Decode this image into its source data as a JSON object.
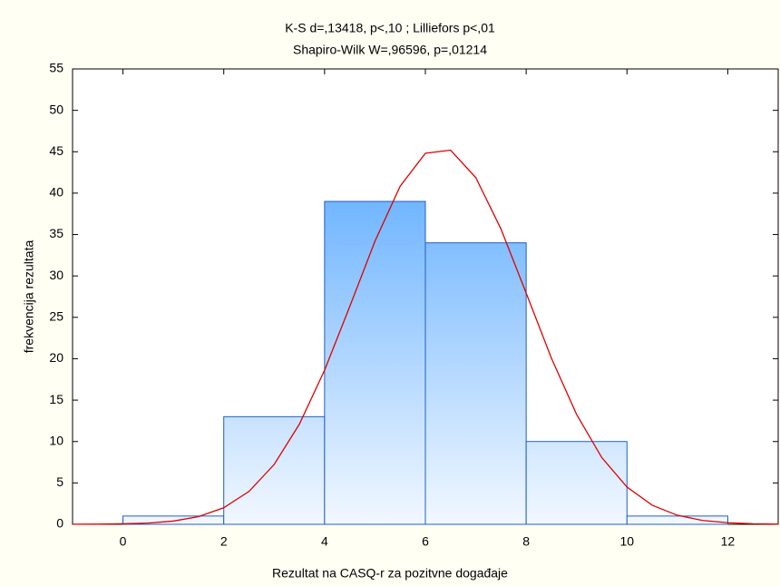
{
  "chart_data": {
    "type": "histogram",
    "title": "K-S d=,13418, p<,10 ; Lilliefors p<,01",
    "subtitle": "Shapiro-Wilk W=,96596, p=,01214",
    "x_label": "Rezultat na CASQ-r za pozitvne događaje",
    "y_label": "frekvencija rezultata",
    "bins": [
      0,
      2,
      4,
      6,
      8,
      10,
      12
    ],
    "values": [
      1,
      13,
      39,
      34,
      10,
      1
    ],
    "color": "#3d9bff",
    "edge_color": "#1f5fc8",
    "xlim": [
      -1,
      13
    ],
    "xticks": [
      0,
      2,
      4,
      6,
      8,
      10,
      12
    ],
    "ylim": [
      0,
      55
    ],
    "yticks": [
      0,
      5,
      10,
      15,
      20,
      25,
      30,
      35,
      40,
      45,
      50,
      55
    ],
    "grid": false,
    "curve": {
      "color": "#e00000",
      "x": [
        -1,
        -0.5,
        0,
        0.5,
        1,
        1.5,
        2,
        2.5,
        3,
        3.5,
        4,
        4.5,
        5,
        5.5,
        6,
        6.5,
        7,
        7.5,
        8,
        8.5,
        9,
        9.5,
        10,
        10.5,
        11,
        11.5,
        12,
        12.5,
        13
      ],
      "values": [
        0.01,
        0.02,
        0.06,
        0.15,
        0.39,
        0.93,
        2.0,
        3.97,
        7.23,
        12.09,
        18.61,
        26.31,
        34.2,
        40.84,
        44.81,
        45.19,
        41.88,
        35.67,
        27.92,
        20.08,
        13.27,
        8.06,
        4.5,
        2.31,
        1.09,
        0.47,
        0.19,
        0.07,
        0.02
      ]
    }
  }
}
